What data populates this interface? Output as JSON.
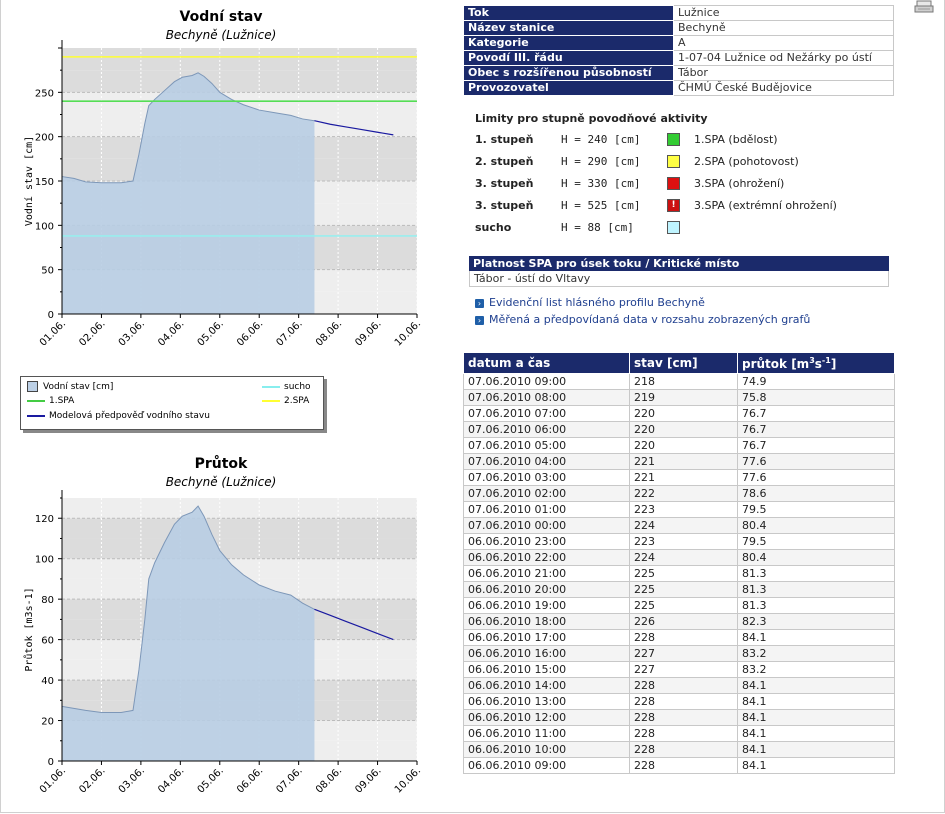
{
  "info_table": [
    {
      "key": "Tok",
      "value": "Lužnice"
    },
    {
      "key": "Název stanice",
      "value": "Bechyně"
    },
    {
      "key": "Kategorie",
      "value": "A"
    },
    {
      "key": "Povodí III. řádu",
      "value": "1-07-04 Lužnice od Nežárky po ústí"
    },
    {
      "key": "Obec s rozšířenou působností",
      "value": "Tábor"
    },
    {
      "key": "Provozovatel",
      "value": "ČHMÚ České Budějovice"
    }
  ],
  "limits": {
    "title": "Limity pro stupně povodňové aktivity",
    "rows": [
      {
        "stage": "1. stupeň",
        "h": "H = 240 [cm]",
        "color": "#33cc33",
        "label": "1.SPA (bdělost)"
      },
      {
        "stage": "2. stupeň",
        "h": "H = 290 [cm]",
        "color": "#ffff44",
        "label": "2.SPA (pohotovost)"
      },
      {
        "stage": "3. stupeň",
        "h": "H = 330 [cm]",
        "color": "#dd1111",
        "label": "3.SPA (ohrožení)"
      },
      {
        "stage": "3. stupeň",
        "h": "H = 525 [cm]",
        "color": "#cc1111",
        "label": "3.SPA (extrémní ohrožení)",
        "icon": "exclamation-icon"
      },
      {
        "stage": "sucho",
        "h": "H = 88 [cm]",
        "color": "#bff4ff",
        "label": ""
      }
    ]
  },
  "spa": {
    "header": "Platnost SPA pro úsek toku / Kritické místo",
    "value": "Tábor - ústí do Vltavy"
  },
  "links": [
    {
      "icon": "arrow-right-icon",
      "text": "Evidenční list hlásného profilu Bechyně"
    },
    {
      "icon": "arrow-right-icon",
      "text": "Měřená a předpovídaná data v rozsahu zobrazených grafů"
    }
  ],
  "data_table": {
    "headers": [
      "datum a čas",
      "stav [cm]",
      "průtok [m"
    ],
    "flow_unit_sup": "3",
    "flow_unit_mid": "s",
    "flow_unit_sup2": "-1",
    "flow_unit_end": "]",
    "rows": [
      [
        "07.06.2010 09:00",
        "218",
        "74.9"
      ],
      [
        "07.06.2010 08:00",
        "219",
        "75.8"
      ],
      [
        "07.06.2010 07:00",
        "220",
        "76.7"
      ],
      [
        "07.06.2010 06:00",
        "220",
        "76.7"
      ],
      [
        "07.06.2010 05:00",
        "220",
        "76.7"
      ],
      [
        "07.06.2010 04:00",
        "221",
        "77.6"
      ],
      [
        "07.06.2010 03:00",
        "221",
        "77.6"
      ],
      [
        "07.06.2010 02:00",
        "222",
        "78.6"
      ],
      [
        "07.06.2010 01:00",
        "223",
        "79.5"
      ],
      [
        "07.06.2010 00:00",
        "224",
        "80.4"
      ],
      [
        "06.06.2010 23:00",
        "223",
        "79.5"
      ],
      [
        "06.06.2010 22:00",
        "224",
        "80.4"
      ],
      [
        "06.06.2010 21:00",
        "225",
        "81.3"
      ],
      [
        "06.06.2010 20:00",
        "225",
        "81.3"
      ],
      [
        "06.06.2010 19:00",
        "225",
        "81.3"
      ],
      [
        "06.06.2010 18:00",
        "226",
        "82.3"
      ],
      [
        "06.06.2010 17:00",
        "228",
        "84.1"
      ],
      [
        "06.06.2010 16:00",
        "227",
        "83.2"
      ],
      [
        "06.06.2010 15:00",
        "227",
        "83.2"
      ],
      [
        "06.06.2010 14:00",
        "228",
        "84.1"
      ],
      [
        "06.06.2010 13:00",
        "228",
        "84.1"
      ],
      [
        "06.06.2010 12:00",
        "228",
        "84.1"
      ],
      [
        "06.06.2010 11:00",
        "228",
        "84.1"
      ],
      [
        "06.06.2010 10:00",
        "228",
        "84.1"
      ],
      [
        "06.06.2010 09:00",
        "228",
        "84.1"
      ]
    ]
  },
  "legend": {
    "items": [
      {
        "kind": "box",
        "label": "Vodní stav [cm]"
      },
      {
        "kind": "line",
        "color": "#44cc44",
        "label": "1.SPA"
      },
      {
        "kind": "line",
        "color": "#1a1aa0",
        "label": "Modelová předpověď vodního stavu"
      },
      {
        "kind": "line",
        "color": "#88eeee",
        "label": "sucho"
      },
      {
        "kind": "line",
        "color": "#ffff33",
        "label": "2.SPA"
      }
    ]
  },
  "chart_data": [
    {
      "type": "area",
      "title": "Vodní stav",
      "subtitle": "Bechyně (Lužnice)",
      "ylabel": "Vodní stav [cm]",
      "xlabel": "",
      "ylim": [
        0,
        300
      ],
      "y_ticks": [
        0,
        50,
        100,
        150,
        200,
        250
      ],
      "x_ticks": [
        "01.06.",
        "02.06.",
        "03.06.",
        "04.06.",
        "05.06.",
        "06.06.",
        "07.06.",
        "08.06.",
        "09.06.",
        "10.06."
      ],
      "xlim_days": [
        1.0,
        10.0
      ],
      "area_color": "#b8cde3",
      "forecast_color": "#1a1aa0",
      "observed_end_day": 7.4,
      "observed": {
        "day": [
          1.0,
          1.3,
          1.6,
          2.0,
          2.5,
          2.8,
          2.95,
          3.1,
          3.2,
          3.35,
          3.6,
          3.85,
          4.05,
          4.3,
          4.45,
          4.6,
          4.8,
          5.0,
          5.3,
          5.6,
          6.0,
          6.4,
          6.8,
          7.1,
          7.4
        ],
        "value": [
          155,
          153,
          149,
          148,
          148,
          150,
          180,
          215,
          235,
          242,
          252,
          262,
          267,
          269,
          272,
          268,
          260,
          250,
          242,
          236,
          230,
          227,
          224,
          220,
          218
        ]
      },
      "forecast": {
        "day": [
          7.4,
          7.8,
          8.2,
          8.6,
          9.0,
          9.4
        ],
        "value": [
          218,
          214,
          211,
          208,
          205,
          202
        ]
      },
      "reference_lines": [
        {
          "name": "1.SPA",
          "value": 240,
          "color": "#55dd55"
        },
        {
          "name": "2.SPA",
          "value": 290,
          "color": "#ffff33"
        },
        {
          "name": "sucho",
          "value": 88,
          "color": "#99eeee"
        }
      ]
    },
    {
      "type": "area",
      "title": "Průtok",
      "subtitle": "Bechyně (Lužnice)",
      "ylabel": "Průtok [m3s-1]",
      "xlabel": "",
      "ylim": [
        0,
        130
      ],
      "y_ticks": [
        0,
        20,
        40,
        60,
        80,
        100,
        120
      ],
      "x_ticks": [
        "01.06.",
        "02.06.",
        "03.06.",
        "04.06.",
        "05.06.",
        "06.06.",
        "07.06.",
        "08.06.",
        "09.06.",
        "10.06."
      ],
      "xlim_days": [
        1.0,
        10.0
      ],
      "area_color": "#b8cde3",
      "forecast_color": "#1a1aa0",
      "observed_end_day": 7.4,
      "observed": {
        "day": [
          1.0,
          1.3,
          1.6,
          2.0,
          2.5,
          2.8,
          2.95,
          3.1,
          3.2,
          3.35,
          3.6,
          3.85,
          4.05,
          4.3,
          4.45,
          4.6,
          4.8,
          5.0,
          5.3,
          5.6,
          6.0,
          6.4,
          6.8,
          7.1,
          7.4
        ],
        "value": [
          27,
          26,
          25,
          24,
          24,
          25,
          45,
          70,
          90,
          98,
          108,
          117,
          121,
          123,
          126,
          121,
          112,
          104,
          97,
          92,
          87,
          84,
          82,
          78,
          75
        ]
      },
      "forecast": {
        "day": [
          7.4,
          7.8,
          8.2,
          8.6,
          9.0,
          9.4
        ],
        "value": [
          75,
          72,
          69,
          66,
          63,
          60
        ]
      },
      "reference_lines": []
    }
  ]
}
